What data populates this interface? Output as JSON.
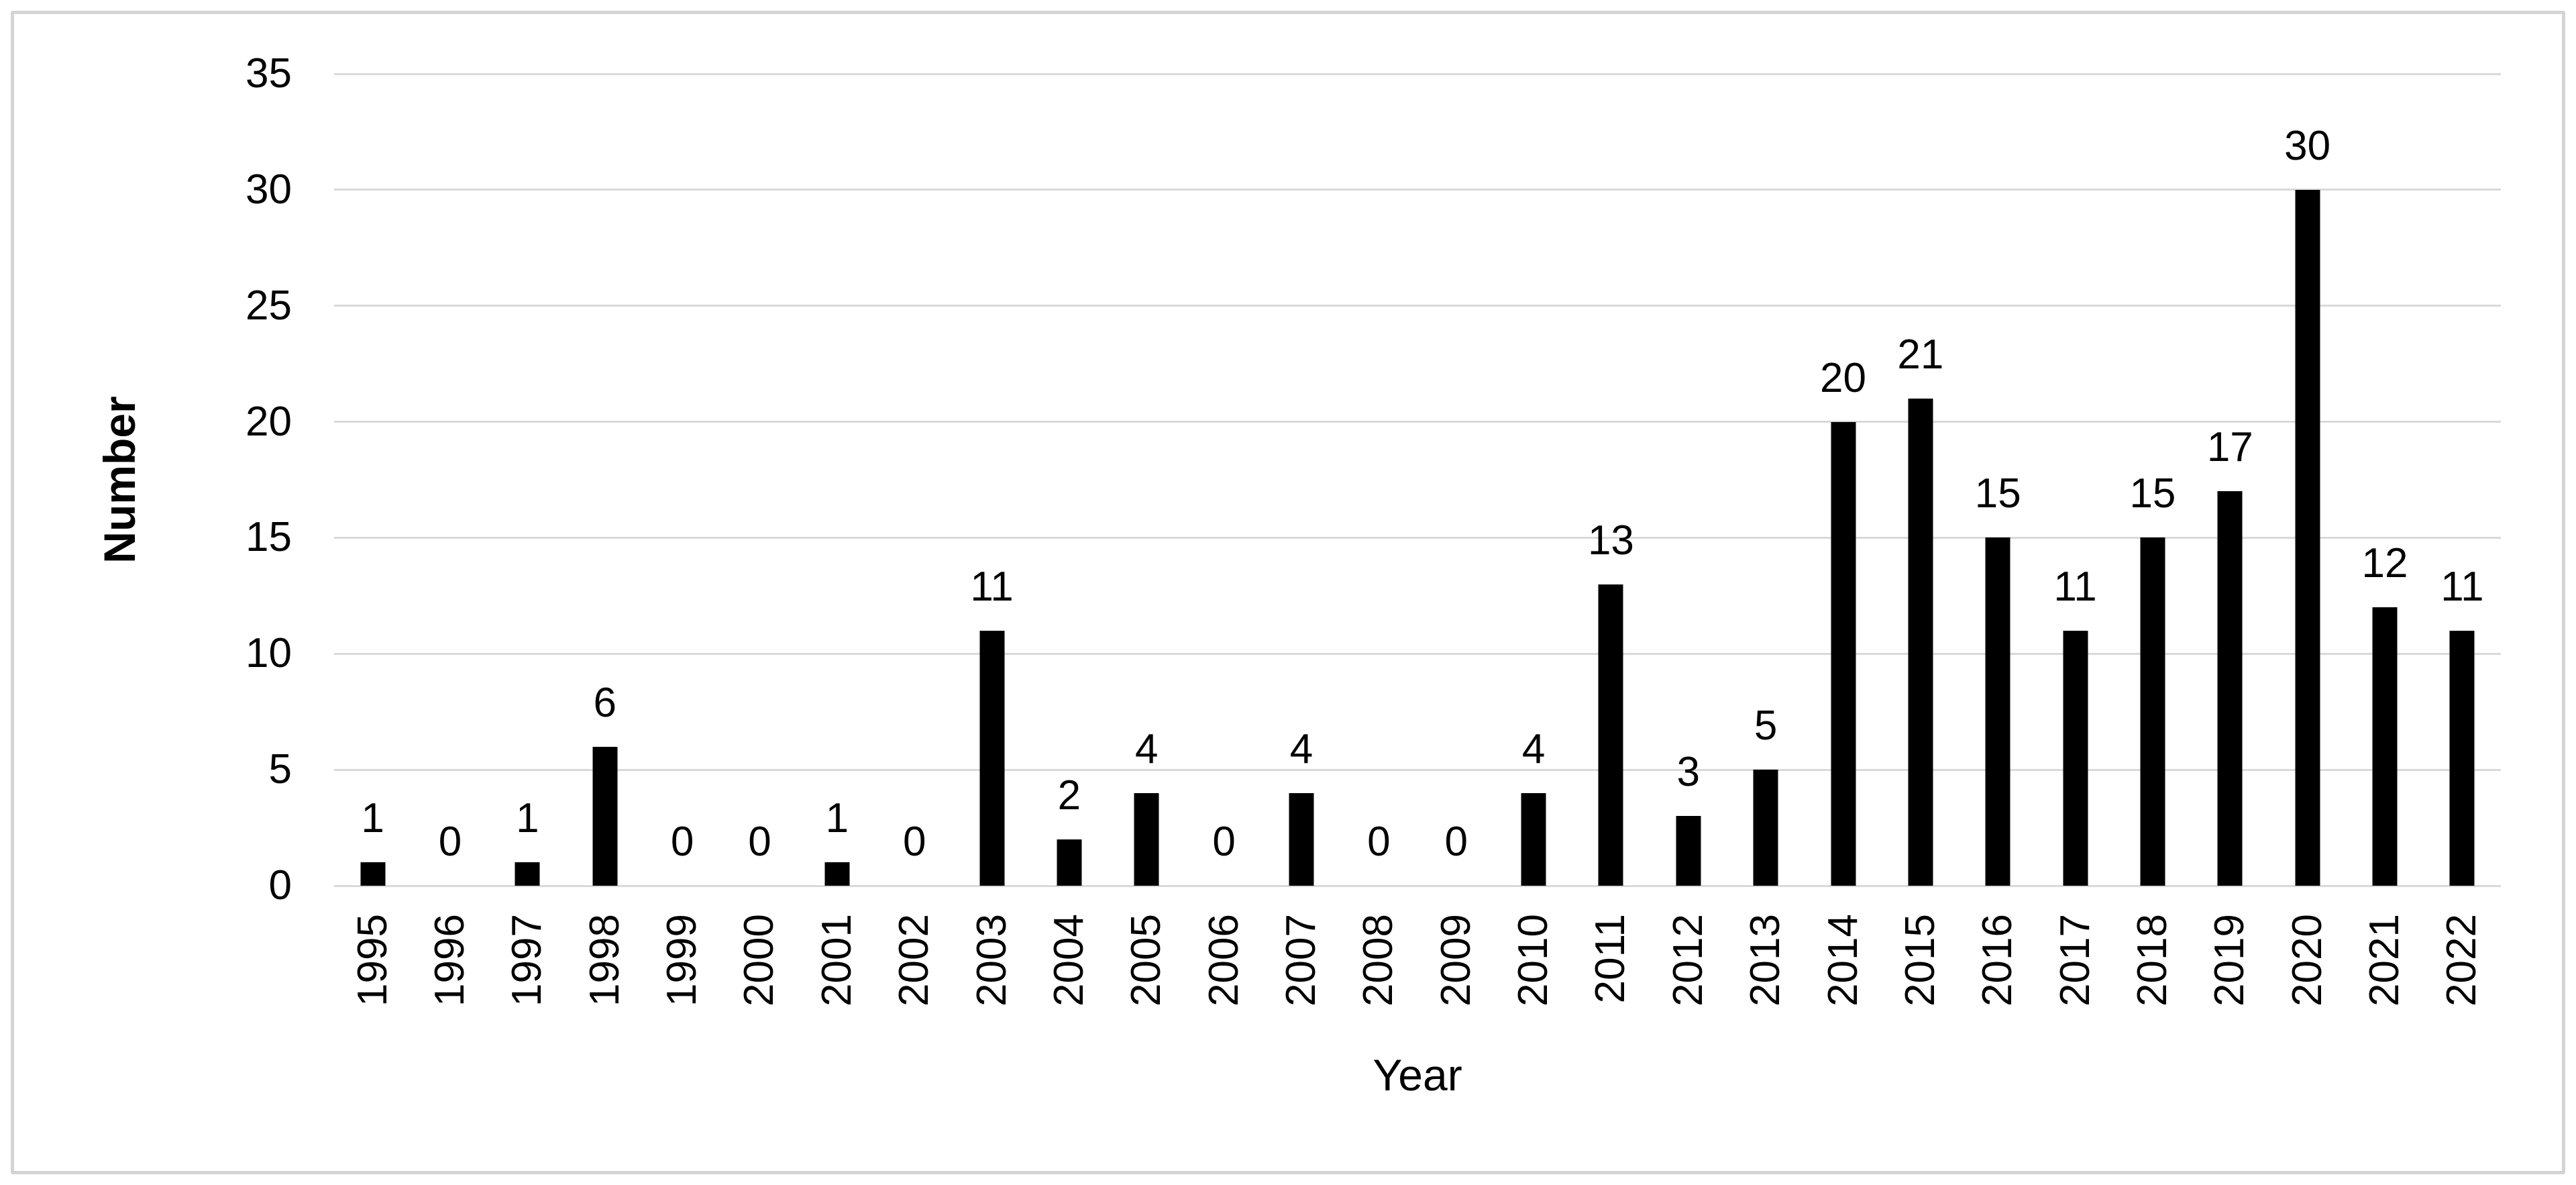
{
  "chart_data": {
    "type": "bar",
    "title": "",
    "xlabel": "Year",
    "ylabel": "Number",
    "categories": [
      "1995",
      "1996",
      "1997",
      "1998",
      "1999",
      "2000",
      "2001",
      "2002",
      "2003",
      "2004",
      "2005",
      "2006",
      "2007",
      "2008",
      "2009",
      "2010",
      "2011",
      "2012",
      "2013",
      "2014",
      "2015",
      "2016",
      "2017",
      "2018",
      "2019",
      "2020",
      "2021",
      "2022"
    ],
    "values": [
      1,
      0,
      1,
      6,
      0,
      0,
      1,
      0,
      11,
      2,
      4,
      0,
      4,
      0,
      0,
      4,
      13,
      3,
      5,
      20,
      21,
      15,
      11,
      15,
      17,
      30,
      12,
      11
    ],
    "ylim": [
      0,
      35
    ],
    "ytick_step": 5,
    "yticks": [
      0,
      5,
      10,
      15,
      20,
      25,
      30,
      35
    ],
    "grid": true,
    "legend": "none",
    "data_labels": "outside-end",
    "colors": {
      "bar": "#000000",
      "gridline": "#d9d9d9",
      "frame_border": "#d4d4d4",
      "text": "#000000",
      "background": "#ffffff"
    }
  }
}
